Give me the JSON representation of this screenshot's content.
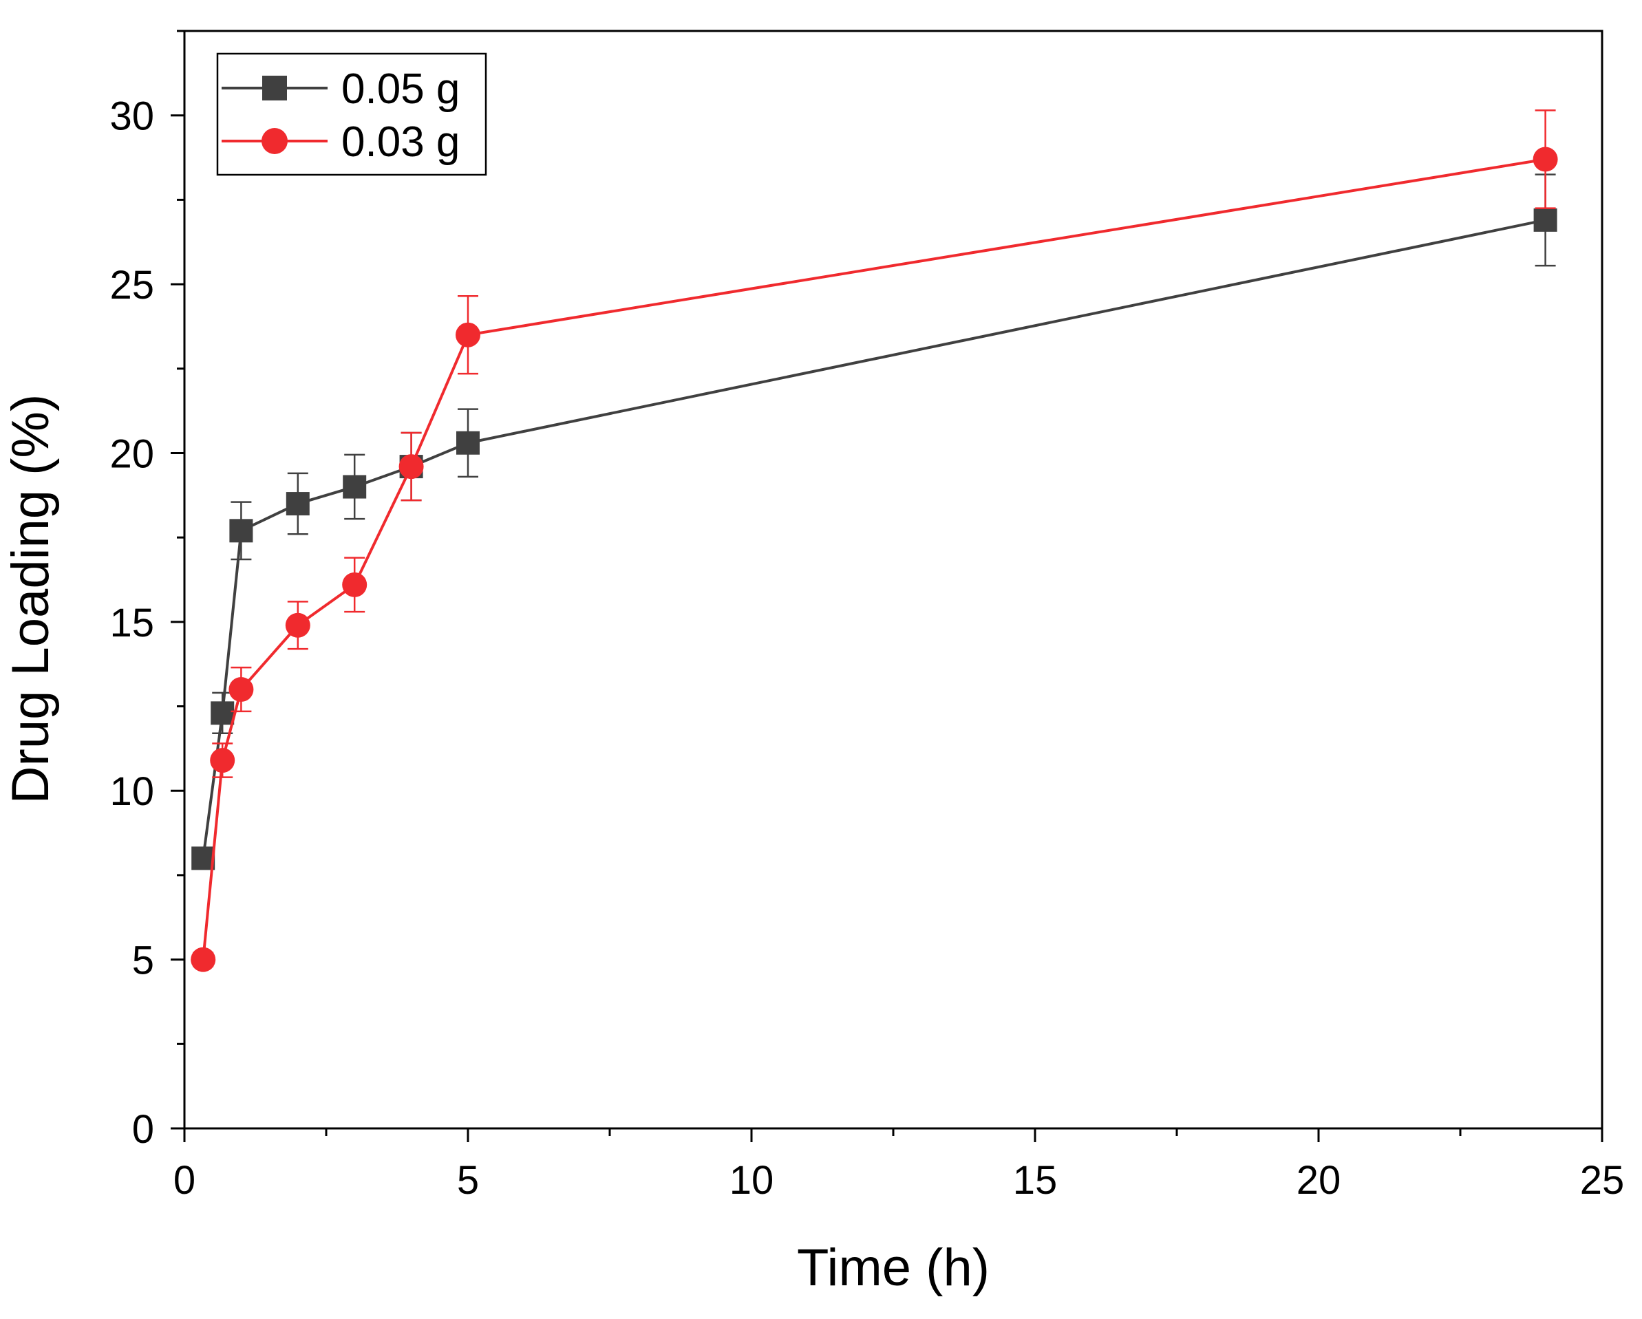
{
  "chart_data": {
    "type": "line",
    "title": "",
    "xlabel": "Time (h)",
    "ylabel": "Drug Loading (%)",
    "xlim": [
      0,
      25
    ],
    "ylim": [
      0,
      32.5
    ],
    "xticks": [
      0,
      5,
      10,
      15,
      20,
      25
    ],
    "xtick_labels": [
      "0",
      "5",
      "10",
      "15",
      "20",
      "25"
    ],
    "yticks": [
      0,
      5,
      10,
      15,
      20,
      25,
      30
    ],
    "ytick_labels": [
      "0",
      "5",
      "10",
      "15",
      "20",
      "25",
      "30"
    ],
    "grid": false,
    "legend_position": "top-left",
    "series": [
      {
        "name": "0.05 g",
        "color": "#404040",
        "marker": "square",
        "x": [
          0.33,
          0.67,
          1,
          2,
          3,
          4,
          5,
          24
        ],
        "y": [
          8.0,
          12.3,
          17.7,
          18.5,
          19.0,
          19.6,
          20.3,
          26.9
        ],
        "error": [
          0.3,
          0.6,
          0.85,
          0.9,
          0.95,
          1.0,
          1.0,
          1.35
        ]
      },
      {
        "name": "0.03 g",
        "color": "#f02a2e",
        "marker": "circle",
        "x": [
          0.33,
          0.67,
          1,
          2,
          3,
          4,
          5,
          24
        ],
        "y": [
          5.0,
          10.9,
          13.0,
          14.9,
          16.1,
          19.6,
          23.5,
          28.7
        ],
        "error": [
          0.2,
          0.5,
          0.65,
          0.7,
          0.8,
          1.0,
          1.15,
          1.45
        ]
      }
    ]
  }
}
